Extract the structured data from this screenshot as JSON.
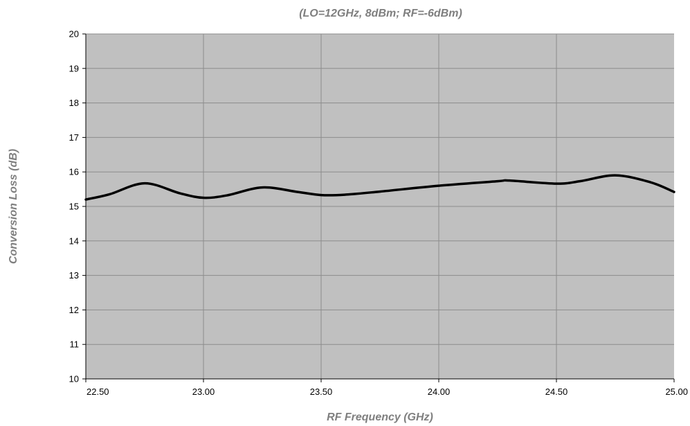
{
  "chart_data": {
    "type": "line",
    "title": "(LO=12GHz, 8dBm; RF=-6dBm)",
    "xlabel": "RF Frequency (GHz)",
    "ylabel": "Conversion Loss (dB)",
    "xlim": [
      22.5,
      25.0
    ],
    "ylim": [
      10,
      20
    ],
    "x_ticks": [
      "22.50",
      "23.00",
      "23.50",
      "24.00",
      "24.50",
      "25.00"
    ],
    "y_ticks": [
      "10",
      "11",
      "12",
      "13",
      "14",
      "15",
      "16",
      "17",
      "18",
      "19",
      "20"
    ],
    "grid": true,
    "legend": "none",
    "series": [
      {
        "color": "#000000",
        "x": [
          22.5,
          22.6,
          22.75,
          22.9,
          23.0,
          23.1,
          23.25,
          23.4,
          23.5,
          23.6,
          23.75,
          24.0,
          24.25,
          24.3,
          24.5,
          24.6,
          24.75,
          24.9,
          25.0
        ],
        "y": [
          15.2,
          15.35,
          15.67,
          15.38,
          15.25,
          15.32,
          15.55,
          15.42,
          15.33,
          15.34,
          15.43,
          15.6,
          15.73,
          15.75,
          15.66,
          15.73,
          15.9,
          15.7,
          15.42
        ]
      }
    ]
  },
  "colors": {
    "plot_background": "#c0c0c0",
    "gridline": "#8c8c8c",
    "line": "#000000",
    "axis_title": "#7f7f7f"
  }
}
